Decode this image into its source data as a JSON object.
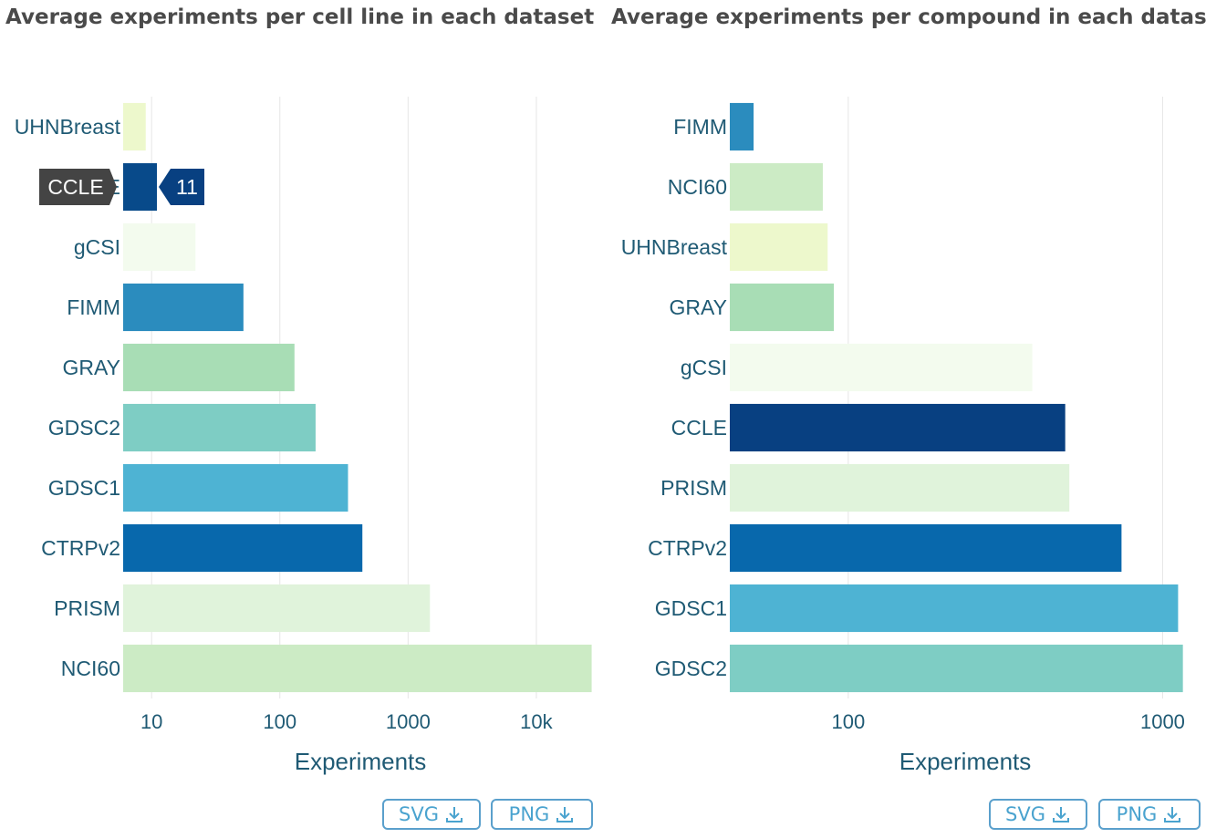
{
  "chart_data": [
    {
      "type": "bar",
      "orientation": "horizontal",
      "title": "Average experiments per cell line in each dataset",
      "xlabel": "Experiments",
      "ylabel": "",
      "xscale": "log",
      "xlim": [
        6,
        30000
      ],
      "xtick_values": [
        10,
        100,
        1000,
        10000
      ],
      "xtick_labels": [
        "10",
        "100",
        "1000",
        "10k"
      ],
      "grid": true,
      "categories": [
        "UHNBreast",
        "CCLE",
        "gCSI",
        "FIMM",
        "GRAY",
        "GDSC2",
        "GDSC1",
        "CTRPv2",
        "PRISM",
        "NCI60"
      ],
      "values": [
        9,
        11,
        22,
        52,
        130,
        190,
        340,
        440,
        1480,
        27000
      ],
      "colors": [
        "#edf8cc",
        "#084a8a",
        "#f3fbee",
        "#2b8cbe",
        "#a8ddb5",
        "#7ecdc4",
        "#4eb3d3",
        "#0868ac",
        "#e0f3db",
        "#ccebc5"
      ],
      "tooltip": {
        "category": "CCLE",
        "value": "11",
        "label_bg": "#444444",
        "value_bg": "#084081"
      }
    },
    {
      "type": "bar",
      "orientation": "horizontal",
      "title": "Average experiments per compound in each dataset",
      "xlabel": "Experiments",
      "ylabel": "",
      "xscale": "log",
      "xlim": [
        42,
        1320
      ],
      "xtick_values": [
        100,
        1000
      ],
      "xtick_labels": [
        "100",
        "1000"
      ],
      "grid": true,
      "categories": [
        "FIMM",
        "NCI60",
        "UHNBreast",
        "GRAY",
        "gCSI",
        "CCLE",
        "PRISM",
        "CTRPv2",
        "GDSC1",
        "GDSC2"
      ],
      "values": [
        50,
        83,
        86,
        90,
        385,
        490,
        505,
        740,
        1120,
        1160
      ],
      "colors": [
        "#2b8cbe",
        "#ccebc5",
        "#edf8cc",
        "#a8ddb5",
        "#f3fbee",
        "#084081",
        "#e0f3db",
        "#0868ac",
        "#4eb3d3",
        "#7ecdc4"
      ]
    }
  ],
  "buttons": {
    "svg_label": "SVG",
    "png_label": "PNG",
    "download_icon": "download-icon"
  },
  "style": {
    "label_color": "#1f5a74",
    "grid_color": "#e6e6e6",
    "button_color": "#4aa3cf"
  }
}
